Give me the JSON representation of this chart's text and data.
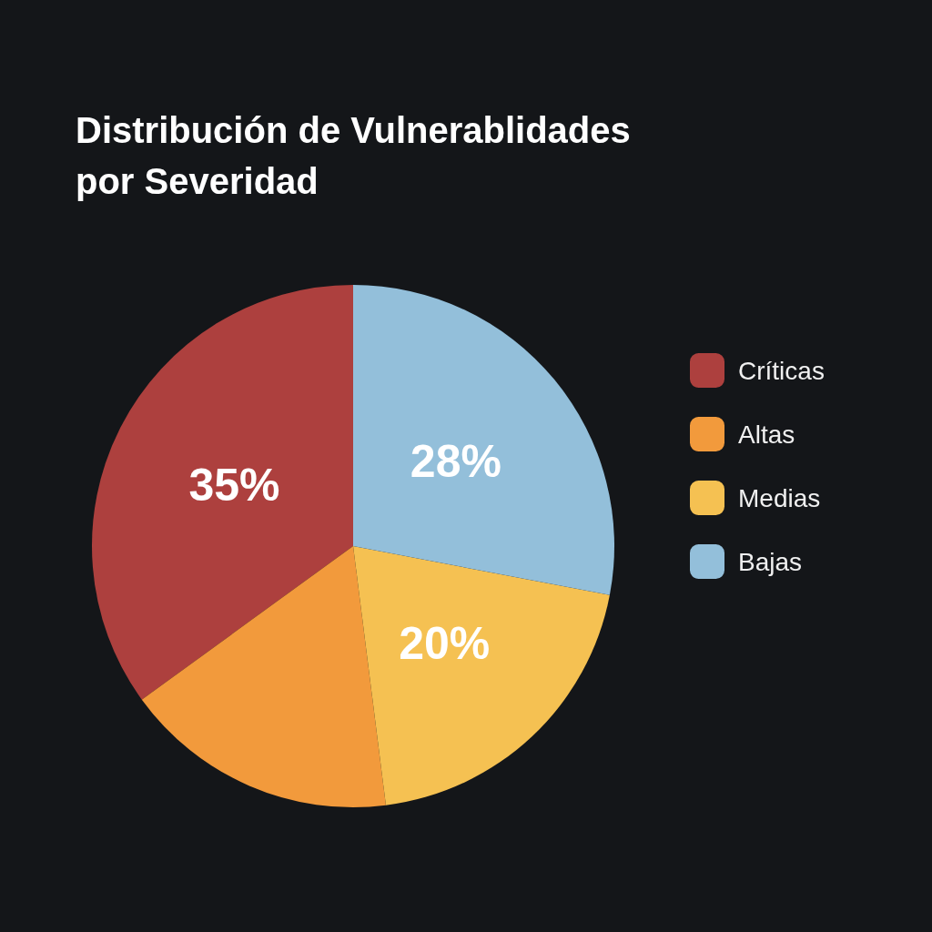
{
  "chart_data": {
    "type": "pie",
    "title": "Distribución de Vulnerablidades por Severidad",
    "categories": [
      "Críticas",
      "Altas",
      "Medias",
      "Bajas"
    ],
    "values": [
      35,
      17,
      20,
      28
    ],
    "colors": [
      "#ad403e",
      "#f29a3c",
      "#f5c152",
      "#93bfda"
    ],
    "value_labels": [
      "35%",
      null,
      "20%",
      "28%"
    ],
    "legend": "right"
  }
}
